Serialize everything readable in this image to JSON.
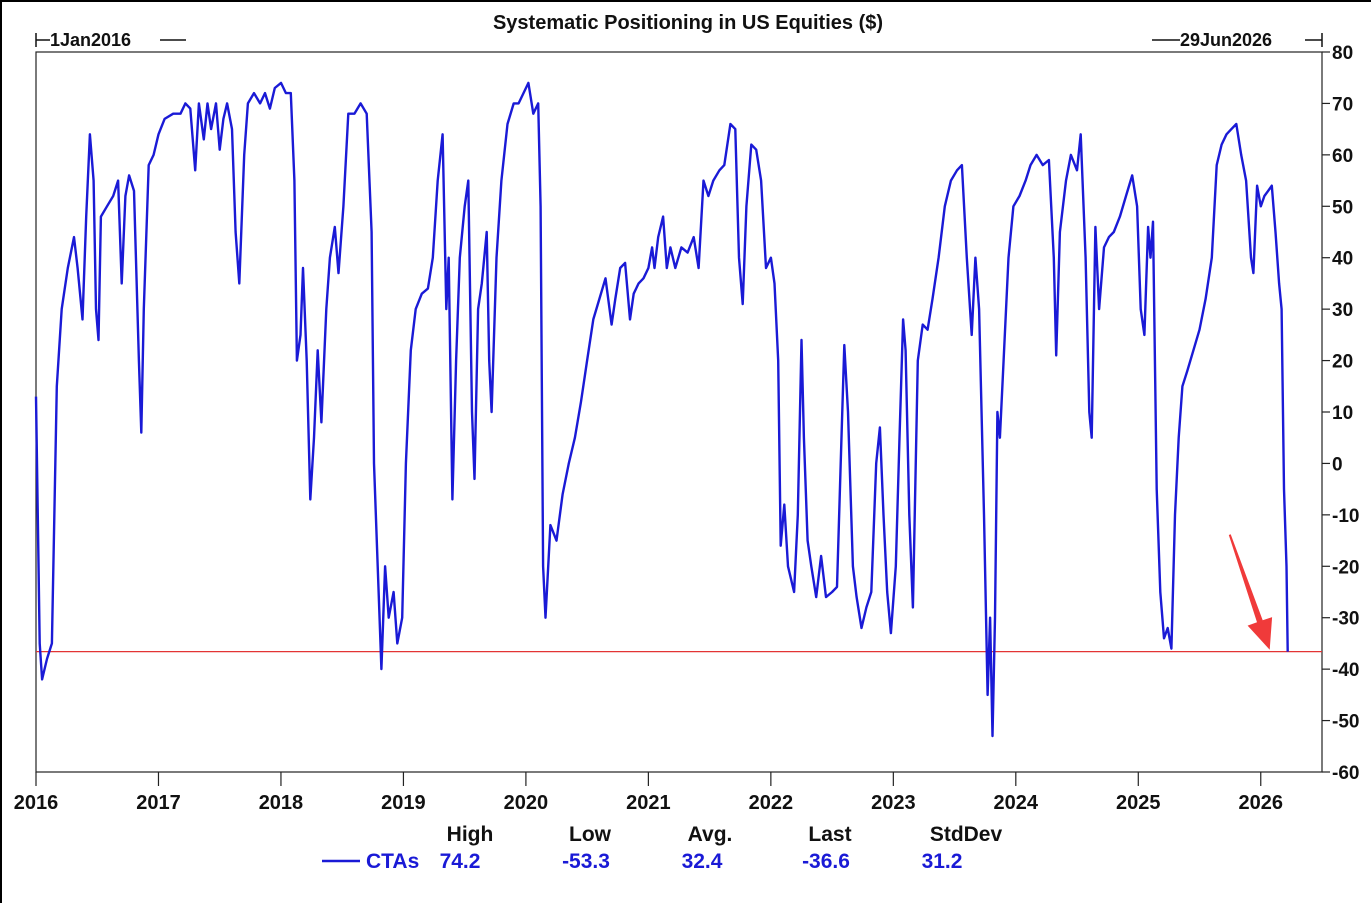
{
  "chart_data": {
    "type": "line",
    "title": "Systematic Positioning in US Equities ($)",
    "start_label": "1Jan2016",
    "end_label": "29Jun2026",
    "xlim": [
      2016.0,
      2026.5
    ],
    "ylim": [
      -60,
      80
    ],
    "x_ticks": [
      "2016",
      "2017",
      "2018",
      "2019",
      "2020",
      "2021",
      "2022",
      "2023",
      "2024",
      "2025",
      "2026"
    ],
    "y_ticks": [
      "80",
      "70",
      "60",
      "50",
      "40",
      "30",
      "20",
      "10",
      "0",
      "-10",
      "-20",
      "-30",
      "-40",
      "-50",
      "-60"
    ],
    "reference_line": {
      "y": -36.6,
      "color": "#e33434"
    },
    "series": [
      {
        "name": "CTAs",
        "color": "#1a1ad6",
        "points": [
          [
            2016.0,
            13
          ],
          [
            2016.03,
            -35
          ],
          [
            2016.05,
            -42
          ],
          [
            2016.09,
            -38
          ],
          [
            2016.13,
            -35
          ],
          [
            2016.17,
            15
          ],
          [
            2016.21,
            30
          ],
          [
            2016.26,
            38
          ],
          [
            2016.31,
            44
          ],
          [
            2016.34,
            38
          ],
          [
            2016.38,
            28
          ],
          [
            2016.41,
            48
          ],
          [
            2016.44,
            64
          ],
          [
            2016.47,
            55
          ],
          [
            2016.49,
            30
          ],
          [
            2016.51,
            24
          ],
          [
            2016.53,
            48
          ],
          [
            2016.58,
            50
          ],
          [
            2016.63,
            52
          ],
          [
            2016.67,
            55
          ],
          [
            2016.7,
            35
          ],
          [
            2016.73,
            52
          ],
          [
            2016.76,
            56
          ],
          [
            2016.8,
            53
          ],
          [
            2016.84,
            20
          ],
          [
            2016.86,
            6
          ],
          [
            2016.88,
            30
          ],
          [
            2016.92,
            58
          ],
          [
            2016.96,
            60
          ],
          [
            2017.0,
            64
          ],
          [
            2017.05,
            67
          ],
          [
            2017.12,
            68
          ],
          [
            2017.18,
            68
          ],
          [
            2017.22,
            70
          ],
          [
            2017.26,
            69
          ],
          [
            2017.3,
            57
          ],
          [
            2017.33,
            70
          ],
          [
            2017.37,
            63
          ],
          [
            2017.4,
            70
          ],
          [
            2017.43,
            65
          ],
          [
            2017.47,
            70
          ],
          [
            2017.5,
            61
          ],
          [
            2017.53,
            67
          ],
          [
            2017.56,
            70
          ],
          [
            2017.6,
            65
          ],
          [
            2017.63,
            45
          ],
          [
            2017.66,
            35
          ],
          [
            2017.7,
            60
          ],
          [
            2017.73,
            70
          ],
          [
            2017.78,
            72
          ],
          [
            2017.83,
            70
          ],
          [
            2017.87,
            72
          ],
          [
            2017.91,
            69
          ],
          [
            2017.95,
            73
          ],
          [
            2018.0,
            74
          ],
          [
            2018.04,
            72
          ],
          [
            2018.08,
            72
          ],
          [
            2018.11,
            55
          ],
          [
            2018.13,
            20
          ],
          [
            2018.16,
            25
          ],
          [
            2018.18,
            38
          ],
          [
            2018.21,
            20
          ],
          [
            2018.24,
            -7
          ],
          [
            2018.27,
            5
          ],
          [
            2018.3,
            22
          ],
          [
            2018.33,
            8
          ],
          [
            2018.37,
            30
          ],
          [
            2018.4,
            40
          ],
          [
            2018.44,
            46
          ],
          [
            2018.47,
            37
          ],
          [
            2018.51,
            50
          ],
          [
            2018.55,
            68
          ],
          [
            2018.6,
            68
          ],
          [
            2018.65,
            70
          ],
          [
            2018.7,
            68
          ],
          [
            2018.74,
            45
          ],
          [
            2018.76,
            0
          ],
          [
            2018.79,
            -20
          ],
          [
            2018.82,
            -40
          ],
          [
            2018.85,
            -20
          ],
          [
            2018.88,
            -30
          ],
          [
            2018.92,
            -25
          ],
          [
            2018.95,
            -35
          ],
          [
            2018.99,
            -30
          ],
          [
            2019.02,
            0
          ],
          [
            2019.06,
            22
          ],
          [
            2019.1,
            30
          ],
          [
            2019.15,
            33
          ],
          [
            2019.2,
            34
          ],
          [
            2019.24,
            40
          ],
          [
            2019.28,
            55
          ],
          [
            2019.32,
            64
          ],
          [
            2019.35,
            30
          ],
          [
            2019.37,
            40
          ],
          [
            2019.4,
            -7
          ],
          [
            2019.43,
            20
          ],
          [
            2019.46,
            40
          ],
          [
            2019.5,
            50
          ],
          [
            2019.53,
            55
          ],
          [
            2019.56,
            10
          ],
          [
            2019.58,
            -3
          ],
          [
            2019.61,
            30
          ],
          [
            2019.64,
            35
          ],
          [
            2019.68,
            45
          ],
          [
            2019.7,
            20
          ],
          [
            2019.72,
            10
          ],
          [
            2019.76,
            40
          ],
          [
            2019.8,
            55
          ],
          [
            2019.85,
            66
          ],
          [
            2019.9,
            70
          ],
          [
            2019.94,
            70
          ],
          [
            2019.98,
            72
          ],
          [
            2020.02,
            74
          ],
          [
            2020.06,
            68
          ],
          [
            2020.1,
            70
          ],
          [
            2020.12,
            50
          ],
          [
            2020.14,
            -20
          ],
          [
            2020.16,
            -30
          ],
          [
            2020.2,
            -12
          ],
          [
            2020.25,
            -15
          ],
          [
            2020.3,
            -6
          ],
          [
            2020.35,
            0
          ],
          [
            2020.4,
            5
          ],
          [
            2020.45,
            12
          ],
          [
            2020.5,
            20
          ],
          [
            2020.55,
            28
          ],
          [
            2020.6,
            32
          ],
          [
            2020.65,
            36
          ],
          [
            2020.7,
            27
          ],
          [
            2020.73,
            32
          ],
          [
            2020.77,
            38
          ],
          [
            2020.81,
            39
          ],
          [
            2020.85,
            28
          ],
          [
            2020.88,
            33
          ],
          [
            2020.92,
            35
          ],
          [
            2020.96,
            36
          ],
          [
            2021.0,
            38
          ],
          [
            2021.03,
            42
          ],
          [
            2021.05,
            38
          ],
          [
            2021.08,
            44
          ],
          [
            2021.12,
            48
          ],
          [
            2021.15,
            38
          ],
          [
            2021.18,
            42
          ],
          [
            2021.22,
            38
          ],
          [
            2021.27,
            42
          ],
          [
            2021.32,
            41
          ],
          [
            2021.37,
            44
          ],
          [
            2021.41,
            38
          ],
          [
            2021.45,
            55
          ],
          [
            2021.49,
            52
          ],
          [
            2021.53,
            55
          ],
          [
            2021.58,
            57
          ],
          [
            2021.62,
            58
          ],
          [
            2021.67,
            66
          ],
          [
            2021.71,
            65
          ],
          [
            2021.74,
            40
          ],
          [
            2021.77,
            31
          ],
          [
            2021.8,
            50
          ],
          [
            2021.84,
            62
          ],
          [
            2021.88,
            61
          ],
          [
            2021.92,
            55
          ],
          [
            2021.96,
            38
          ],
          [
            2022.0,
            40
          ],
          [
            2022.03,
            35
          ],
          [
            2022.06,
            20
          ],
          [
            2022.08,
            -16
          ],
          [
            2022.11,
            -8
          ],
          [
            2022.14,
            -20
          ],
          [
            2022.19,
            -25
          ],
          [
            2022.22,
            -10
          ],
          [
            2022.25,
            24
          ],
          [
            2022.27,
            5
          ],
          [
            2022.3,
            -15
          ],
          [
            2022.33,
            -20
          ],
          [
            2022.37,
            -26
          ],
          [
            2022.41,
            -18
          ],
          [
            2022.45,
            -26
          ],
          [
            2022.5,
            -25
          ],
          [
            2022.54,
            -24
          ],
          [
            2022.57,
            0
          ],
          [
            2022.6,
            23
          ],
          [
            2022.63,
            10
          ],
          [
            2022.67,
            -20
          ],
          [
            2022.7,
            -26
          ],
          [
            2022.74,
            -32
          ],
          [
            2022.78,
            -28
          ],
          [
            2022.82,
            -25
          ],
          [
            2022.86,
            0
          ],
          [
            2022.89,
            7
          ],
          [
            2022.92,
            -10
          ],
          [
            2022.95,
            -25
          ],
          [
            2022.98,
            -33
          ],
          [
            2023.02,
            -20
          ],
          [
            2023.05,
            5
          ],
          [
            2023.08,
            28
          ],
          [
            2023.1,
            22
          ],
          [
            2023.13,
            -10
          ],
          [
            2023.16,
            -28
          ],
          [
            2023.2,
            20
          ],
          [
            2023.24,
            27
          ],
          [
            2023.28,
            26
          ],
          [
            2023.32,
            32
          ],
          [
            2023.37,
            40
          ],
          [
            2023.42,
            50
          ],
          [
            2023.47,
            55
          ],
          [
            2023.52,
            57
          ],
          [
            2023.56,
            58
          ],
          [
            2023.6,
            40
          ],
          [
            2023.64,
            25
          ],
          [
            2023.67,
            40
          ],
          [
            2023.7,
            30
          ],
          [
            2023.74,
            -10
          ],
          [
            2023.77,
            -45
          ],
          [
            2023.79,
            -30
          ],
          [
            2023.81,
            -53
          ],
          [
            2023.83,
            -30
          ],
          [
            2023.85,
            10
          ],
          [
            2023.87,
            5
          ],
          [
            2023.9,
            20
          ],
          [
            2023.94,
            40
          ],
          [
            2023.98,
            50
          ],
          [
            2024.03,
            52
          ],
          [
            2024.08,
            55
          ],
          [
            2024.12,
            58
          ],
          [
            2024.17,
            60
          ],
          [
            2024.22,
            58
          ],
          [
            2024.27,
            59
          ],
          [
            2024.31,
            40
          ],
          [
            2024.33,
            21
          ],
          [
            2024.36,
            45
          ],
          [
            2024.41,
            55
          ],
          [
            2024.45,
            60
          ],
          [
            2024.5,
            57
          ],
          [
            2024.53,
            64
          ],
          [
            2024.57,
            40
          ],
          [
            2024.6,
            10
          ],
          [
            2024.62,
            5
          ],
          [
            2024.65,
            46
          ],
          [
            2024.68,
            30
          ],
          [
            2024.72,
            42
          ],
          [
            2024.76,
            44
          ],
          [
            2024.8,
            45
          ],
          [
            2024.85,
            48
          ],
          [
            2024.9,
            52
          ],
          [
            2024.95,
            56
          ],
          [
            2024.99,
            50
          ],
          [
            2025.02,
            30
          ],
          [
            2025.05,
            25
          ],
          [
            2025.08,
            46
          ],
          [
            2025.1,
            40
          ],
          [
            2025.12,
            47
          ],
          [
            2025.15,
            -5
          ],
          [
            2025.18,
            -25
          ],
          [
            2025.21,
            -34
          ],
          [
            2025.24,
            -32
          ],
          [
            2025.27,
            -36
          ],
          [
            2025.3,
            -10
          ],
          [
            2025.33,
            5
          ],
          [
            2025.36,
            15
          ],
          [
            2025.4,
            18
          ],
          [
            2025.45,
            22
          ],
          [
            2025.5,
            26
          ],
          [
            2025.55,
            32
          ],
          [
            2025.6,
            40
          ],
          [
            2025.64,
            58
          ],
          [
            2025.68,
            62
          ],
          [
            2025.72,
            64
          ],
          [
            2025.76,
            65
          ],
          [
            2025.8,
            66
          ],
          [
            2025.84,
            60
          ],
          [
            2025.88,
            55
          ],
          [
            2025.92,
            40
          ],
          [
            2025.94,
            37
          ],
          [
            2025.97,
            54
          ],
          [
            2026.0,
            50
          ],
          [
            2026.03,
            52
          ],
          [
            2026.06,
            53
          ],
          [
            2026.09,
            54
          ],
          [
            2026.12,
            45
          ],
          [
            2026.15,
            35
          ],
          [
            2026.17,
            30
          ],
          [
            2026.19,
            -5
          ],
          [
            2026.21,
            -20
          ],
          [
            2026.22,
            -36.6
          ]
        ]
      }
    ],
    "stats": {
      "headers": [
        "High",
        "Low",
        "Avg.",
        "Last",
        "StdDev"
      ],
      "rows": [
        {
          "series": "CTAs",
          "values": [
            "74.2",
            "-53.3",
            "32.4",
            "-36.6",
            "31.2"
          ]
        }
      ]
    },
    "annotation": {
      "type": "arrow",
      "color": "#f03a3a",
      "target_x": 2026.22,
      "target_y": -36.6
    }
  }
}
